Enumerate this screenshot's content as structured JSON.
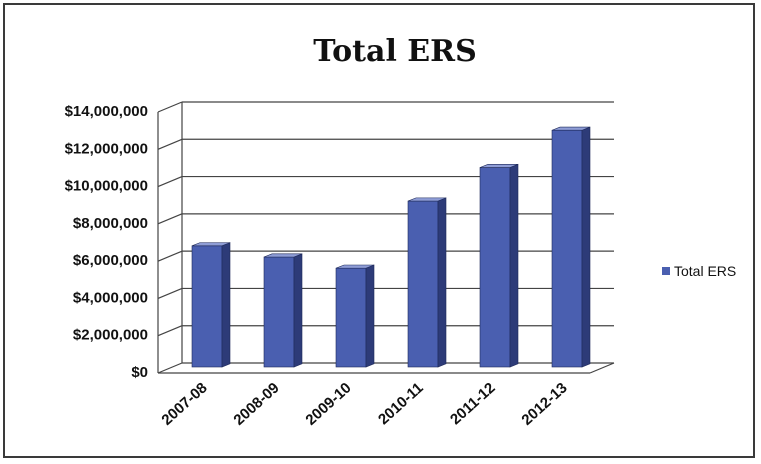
{
  "chart_data": {
    "type": "bar",
    "title": "Total ERS",
    "categories": [
      "2007-08",
      "2008-09",
      "2009-10",
      "2010-11",
      "2011-12",
      "2012-13"
    ],
    "series": [
      {
        "name": "Total ERS",
        "values": [
          6500000,
          5900000,
          5300000,
          8900000,
          10700000,
          12700000
        ]
      }
    ],
    "y_ticks": [
      "$0",
      "$2,000,000",
      "$4,000,000",
      "$6,000,000",
      "$8,000,000",
      "$10,000,000",
      "$12,000,000",
      "$14,000,000"
    ],
    "ylim": [
      0,
      14000000
    ],
    "xlabel": "",
    "ylabel": "",
    "grid": true,
    "legend_position": "right",
    "three_d": true,
    "colors": {
      "bar_front": "#4a5fb0",
      "bar_side": "#2d3b78",
      "bar_top": "#8f9dd6",
      "grid": "#444444",
      "text": "#111111"
    }
  }
}
